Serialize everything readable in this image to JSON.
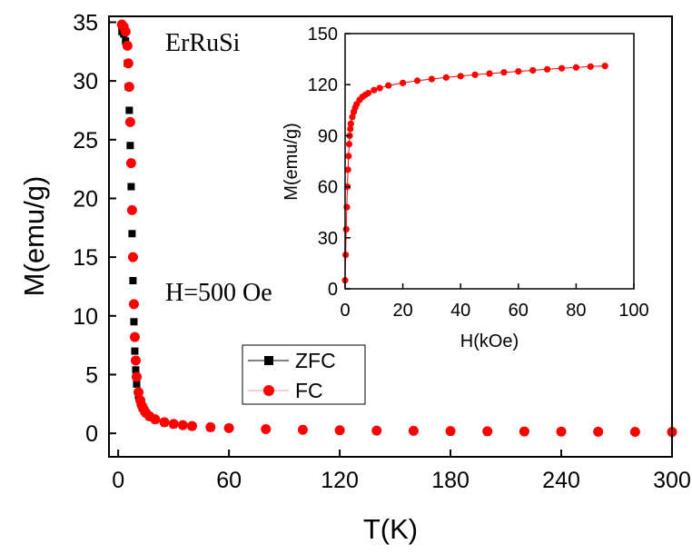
{
  "chart_data": [
    {
      "type": "scatter",
      "annotations": [
        "ErRuSi",
        "H=500 Oe"
      ],
      "xlabel": "T(K)",
      "ylabel": "M(emu/g)",
      "xlim": [
        -5,
        300
      ],
      "ylim": [
        -2,
        35.5
      ],
      "xticks": [
        "0",
        "60",
        "120",
        "180",
        "240",
        "300"
      ],
      "yticks": [
        "0",
        "5",
        "10",
        "15",
        "20",
        "25",
        "30",
        "35"
      ],
      "legend": {
        "placement": "center",
        "entries": [
          "ZFC",
          "FC"
        ]
      },
      "series": [
        {
          "name": "ZFC",
          "marker": "square",
          "color": "#000000",
          "x": [
            2,
            3,
            4,
            5,
            5.5,
            6,
            6.5,
            7,
            7.5,
            8,
            8.5,
            9,
            9.5,
            10,
            11,
            12,
            13,
            14,
            15,
            17,
            20,
            25,
            30,
            40,
            50
          ],
          "y": [
            34.2,
            34.0,
            33.4,
            31.5,
            29.5,
            27.5,
            24.5,
            21.0,
            17.0,
            13.0,
            9.5,
            7.0,
            5.4,
            4.2,
            3.2,
            2.6,
            2.2,
            1.9,
            1.7,
            1.4,
            1.15,
            0.9,
            0.75,
            0.58,
            0.48
          ]
        },
        {
          "name": "FC",
          "marker": "circle",
          "color": "#ff0000",
          "x": [
            2,
            3,
            4,
            5,
            5.5,
            6,
            6.5,
            7,
            7.5,
            8,
            8.5,
            9,
            9.5,
            10,
            11,
            12,
            13,
            14,
            15,
            17,
            20,
            25,
            30,
            35,
            40,
            50,
            60,
            80,
            100,
            120,
            140,
            160,
            180,
            200,
            220,
            240,
            260,
            280,
            300
          ],
          "y": [
            34.8,
            34.6,
            34.2,
            33.0,
            31.5,
            29.5,
            26.5,
            23.0,
            19.0,
            15.0,
            11.0,
            8.2,
            6.2,
            4.8,
            3.5,
            2.8,
            2.3,
            2.0,
            1.75,
            1.45,
            1.2,
            0.95,
            0.8,
            0.7,
            0.62,
            0.52,
            0.45,
            0.36,
            0.3,
            0.26,
            0.23,
            0.21,
            0.19,
            0.17,
            0.16,
            0.15,
            0.14,
            0.13,
            0.12
          ]
        }
      ]
    },
    {
      "type": "line",
      "xlabel": "H(kOe)",
      "ylabel": "M(emu/g)",
      "xlim": [
        0,
        100
      ],
      "ylim": [
        0,
        150
      ],
      "xticks": [
        "0",
        "20",
        "40",
        "60",
        "80",
        "100"
      ],
      "yticks": [
        "0",
        "30",
        "60",
        "90",
        "120",
        "150"
      ],
      "series": [
        {
          "marker": "circle",
          "color": "#ff0000",
          "x": [
            0,
            0.2,
            0.4,
            0.6,
            0.8,
            1.0,
            1.2,
            1.4,
            1.6,
            1.8,
            2.0,
            2.5,
            3,
            3.5,
            4,
            5,
            6,
            7,
            8,
            10,
            12,
            15,
            20,
            25,
            30,
            35,
            40,
            45,
            50,
            55,
            60,
            65,
            70,
            75,
            80,
            85,
            90
          ],
          "y": [
            5,
            20,
            35,
            48,
            60,
            70,
            78,
            85,
            90,
            94,
            97,
            101,
            104,
            106.5,
            108.5,
            111,
            112.8,
            114,
            115,
            116.8,
            118,
            119.5,
            121,
            122.3,
            123.3,
            124.2,
            125,
            125.8,
            126.5,
            127.2,
            127.8,
            128.4,
            129,
            129.6,
            130.1,
            130.6,
            131
          ]
        }
      ]
    }
  ]
}
